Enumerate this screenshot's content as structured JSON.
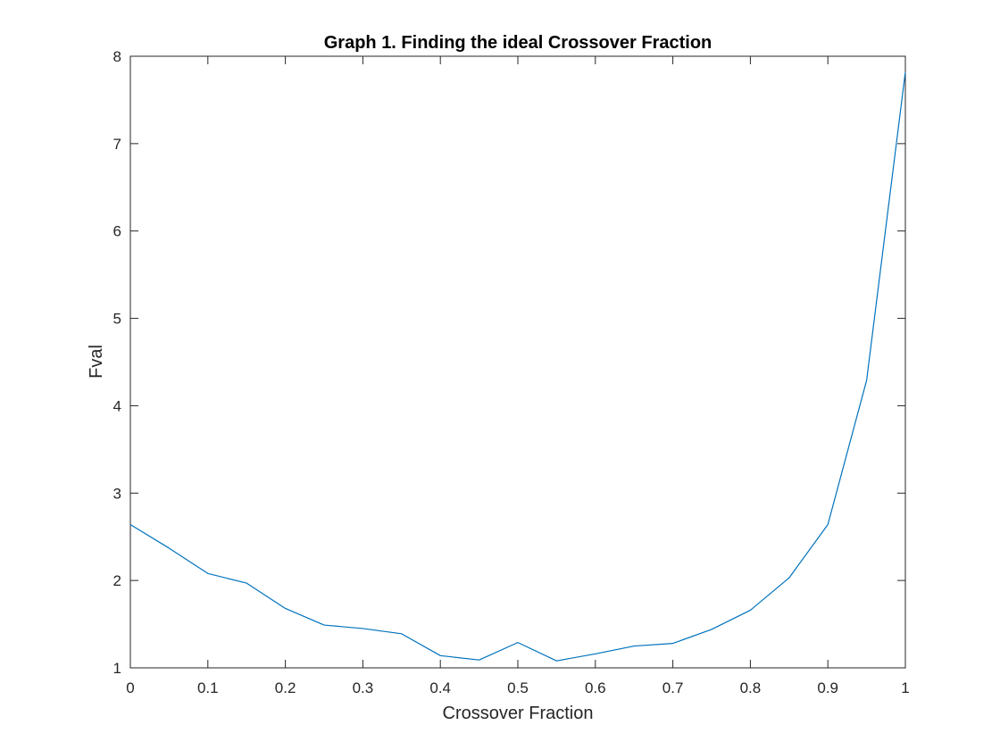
{
  "chart_data": {
    "type": "line",
    "title": "Graph 1. Finding the ideal Crossover Fraction",
    "xlabel": "Crossover Fraction",
    "ylabel": "Fval",
    "xlim": [
      0,
      1
    ],
    "ylim": [
      1,
      8
    ],
    "xticks": [
      "0",
      "0.1",
      "0.2",
      "0.3",
      "0.4",
      "0.5",
      "0.6",
      "0.7",
      "0.8",
      "0.9",
      "1"
    ],
    "yticks": [
      "1",
      "2",
      "3",
      "4",
      "5",
      "6",
      "7",
      "8"
    ],
    "grid": false,
    "box": true,
    "line_color": "#0072BD",
    "series": [
      {
        "x": [
          0,
          0.05,
          0.1,
          0.15,
          0.2,
          0.25,
          0.3,
          0.35,
          0.4,
          0.45,
          0.5,
          0.55,
          0.6,
          0.65,
          0.7,
          0.75,
          0.8,
          0.85,
          0.9,
          0.95,
          1
        ],
        "y": [
          2.64,
          2.37,
          2.08,
          1.97,
          1.68,
          1.49,
          1.45,
          1.39,
          1.14,
          1.09,
          1.29,
          1.08,
          1.16,
          1.25,
          1.28,
          1.44,
          1.66,
          2.03,
          2.64,
          4.29,
          7.82
        ]
      }
    ]
  }
}
